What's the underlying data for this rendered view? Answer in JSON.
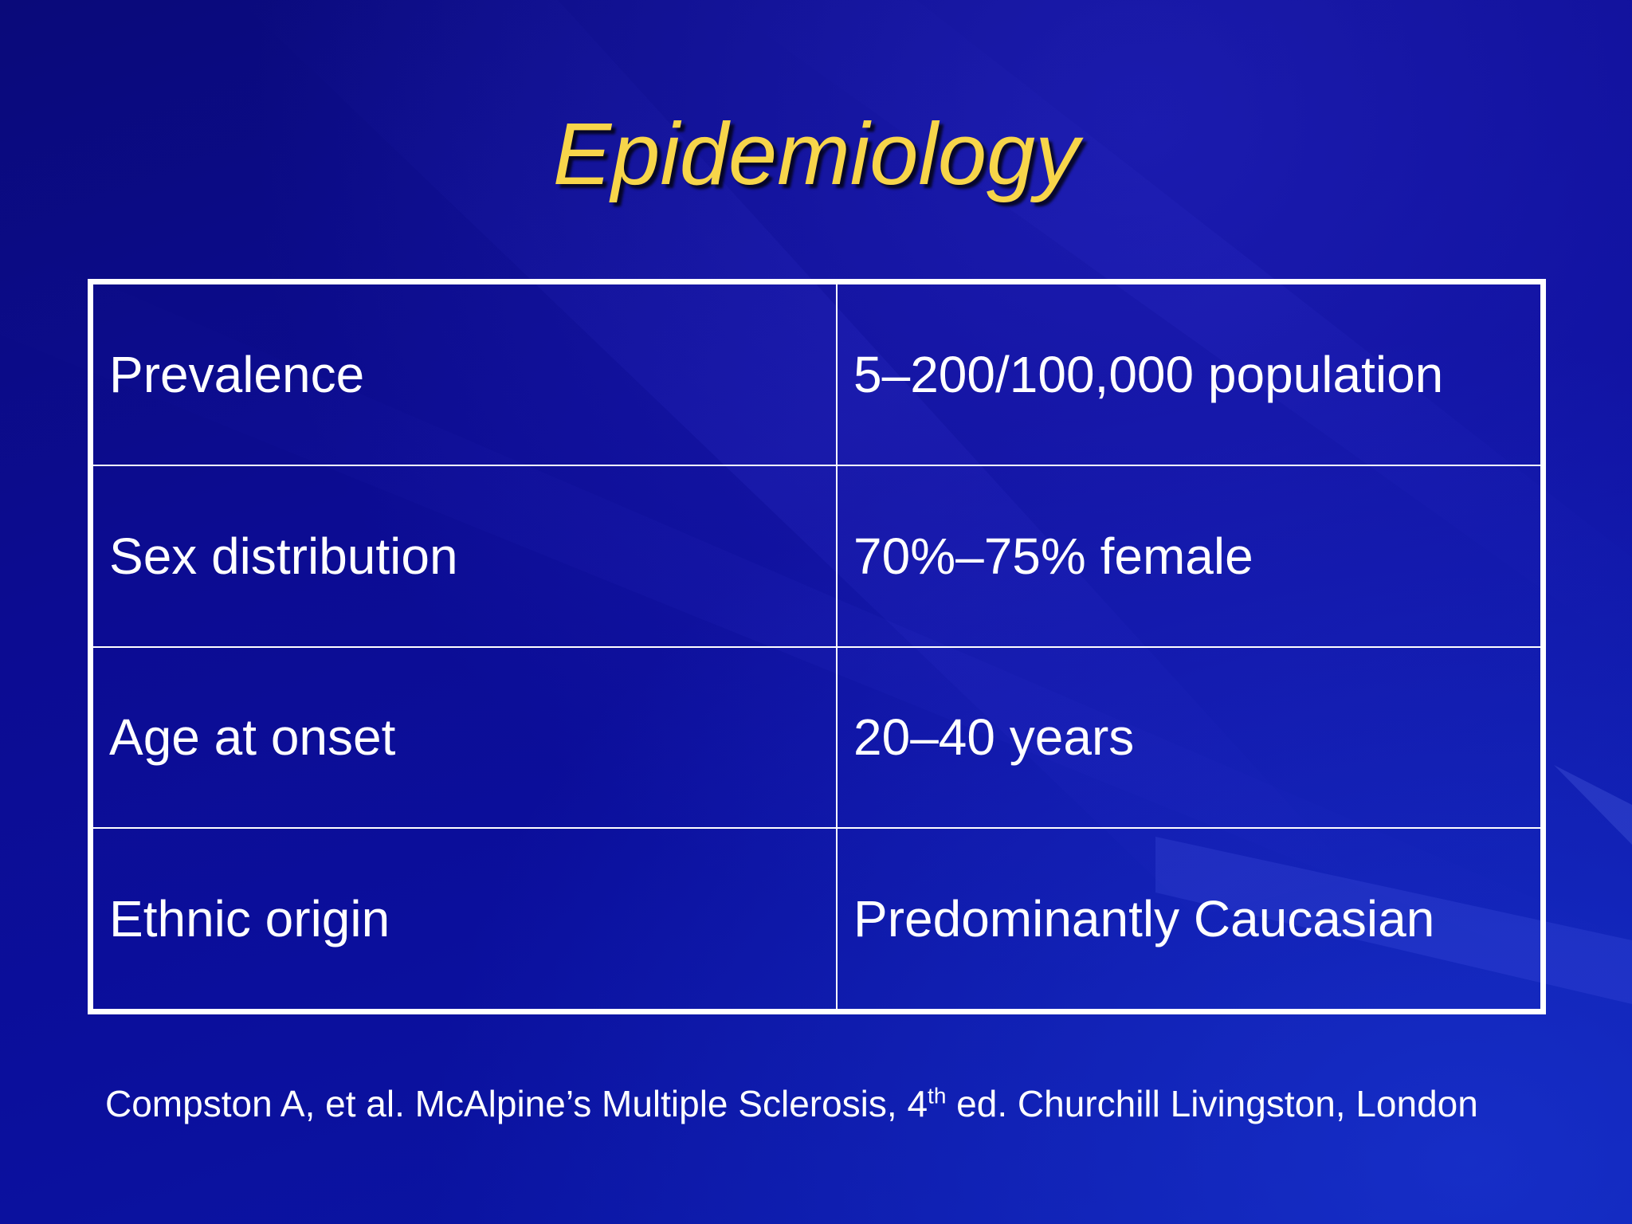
{
  "slide": {
    "title": "Epidemiology",
    "title_color": "#f7d54a",
    "background_color": "#0c0c92"
  },
  "table": {
    "rows": [
      {
        "label": "Prevalence",
        "value": "5–200/100,000 population"
      },
      {
        "label": "Sex distribution",
        "value": "70%–75% female"
      },
      {
        "label": "Age at onset",
        "value": "20–40 years"
      },
      {
        "label": "Ethnic origin",
        "value": "Predominantly Caucasian"
      }
    ]
  },
  "citation": {
    "before_sup": "Compston A, et al. McAlpine’s Multiple Sclerosis, 4",
    "sup": "th",
    "after_sup": " ed. Churchill Livingston, London"
  }
}
